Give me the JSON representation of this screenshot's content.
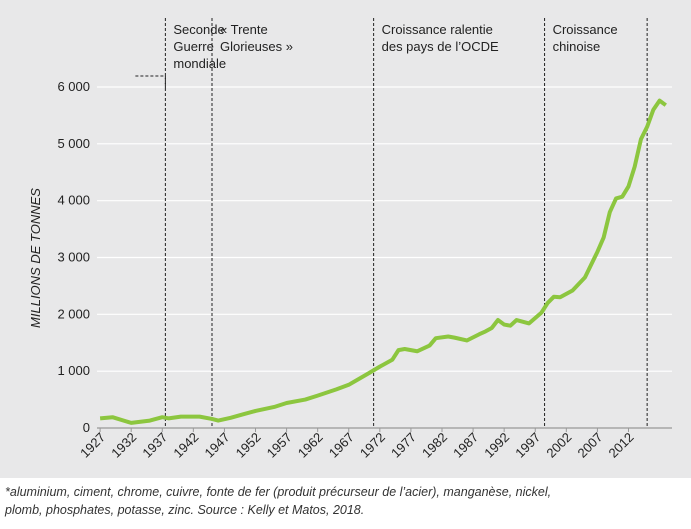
{
  "chart_data": {
    "type": "line",
    "y_label": "MILLIONS DE TONNES",
    "x": [
      1927,
      1929,
      1932,
      1935,
      1937,
      1938,
      1940,
      1943,
      1945,
      1946,
      1948,
      1950,
      1952,
      1955,
      1957,
      1960,
      1962,
      1965,
      1967,
      1970,
      1972,
      1974,
      1975,
      1976,
      1978,
      1980,
      1981,
      1983,
      1984,
      1986,
      1988,
      1989,
      1990,
      1991,
      1992,
      1993,
      1994,
      1996,
      1998,
      1999,
      2000,
      2001,
      2003,
      2005,
      2007,
      2008,
      2009,
      2010,
      2011,
      2012,
      2013,
      2014,
      2015,
      2016,
      2017,
      2018
    ],
    "series": [
      {
        "color": "#8cc63f",
        "values": [
          170,
          190,
          90,
          130,
          190,
          170,
          200,
          200,
          160,
          130,
          180,
          240,
          300,
          370,
          440,
          500,
          570,
          680,
          760,
          950,
          1080,
          1200,
          1370,
          1390,
          1350,
          1450,
          1580,
          1610,
          1590,
          1540,
          1650,
          1700,
          1760,
          1900,
          1820,
          1800,
          1900,
          1840,
          2030,
          2200,
          2310,
          2300,
          2420,
          2650,
          3100,
          3350,
          3800,
          4040,
          4070,
          4250,
          4600,
          5080,
          5300,
          5600,
          5760,
          5680
        ]
      }
    ],
    "xlim": [
      1926.5,
      2019
    ],
    "xticks": [
      1927,
      1932,
      1937,
      1942,
      1947,
      1952,
      1957,
      1962,
      1967,
      1972,
      1977,
      1982,
      1987,
      1992,
      1997,
      2002,
      2007,
      2012
    ],
    "ylim": [
      0,
      6000
    ],
    "yticks": [
      0,
      {
        "value": 1000,
        "label": "1 000"
      },
      {
        "value": 2000,
        "label": "2 000"
      },
      {
        "value": 3000,
        "label": "3 000"
      },
      {
        "value": 4000,
        "label": "4 000"
      },
      {
        "value": 5000,
        "label": "5 000"
      },
      {
        "value": 6000,
        "label": "6 000"
      }
    ],
    "grid": true,
    "periods": [
      {
        "x": 1937.5,
        "lines": [
          "Seconde",
          "Guerre",
          "mondiale"
        ]
      },
      {
        "x": 1945,
        "lines": [
          "« Trente",
          "Glorieuses »"
        ]
      },
      {
        "x": 1971,
        "lines": [
          "Croissance ralentie",
          "des pays de l’OCDE"
        ]
      },
      {
        "x": 1998.5,
        "lines": [
          "Croissance",
          "chinoise"
        ]
      },
      {
        "x": 2015
      }
    ]
  },
  "footnote": [
    "*aluminium, ciment, chrome, cuivre, fonte de fer (produit précurseur de l’acier), manganèse, nickel,",
    "plomb, phosphates, potasse, zinc. Source : Kelly et Matos, 2018."
  ]
}
